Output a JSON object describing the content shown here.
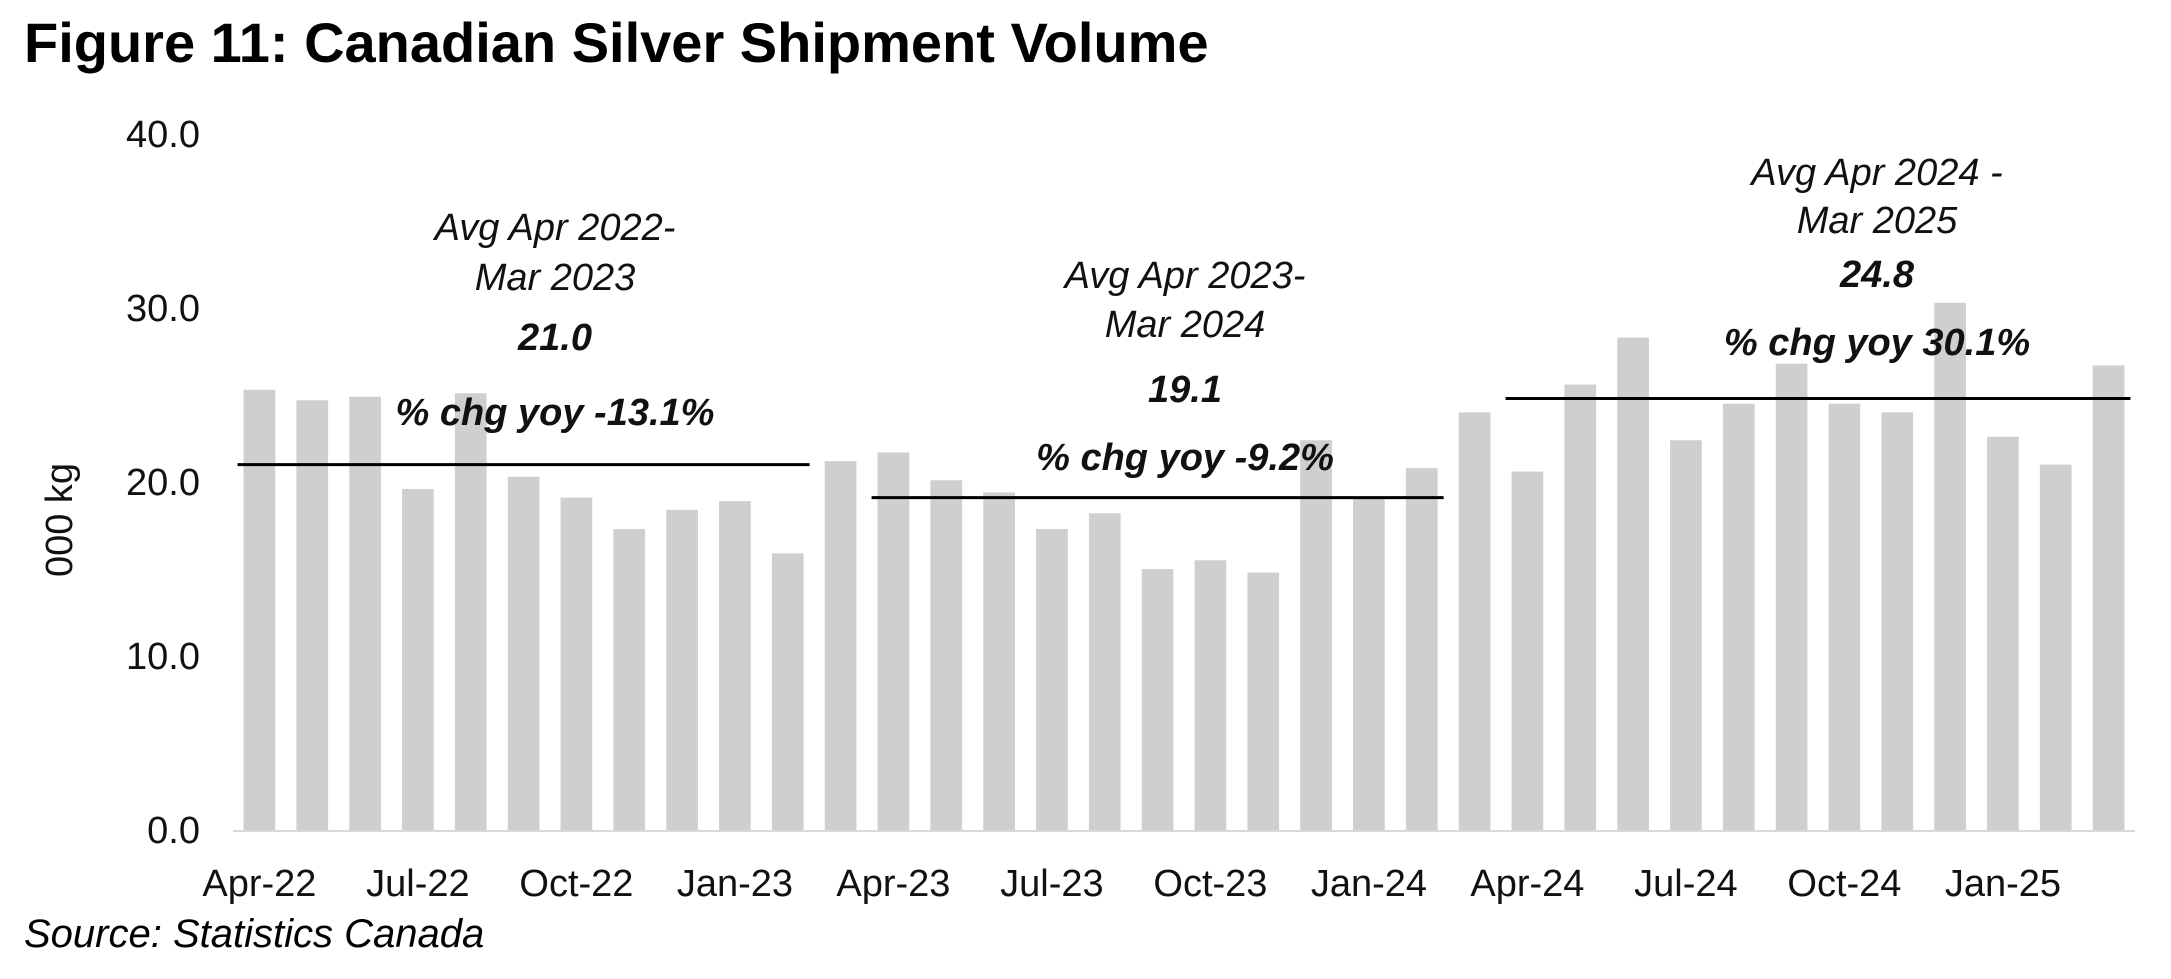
{
  "figure_title": "Figure 11: Canadian Silver Shipment Volume",
  "source": "Source: Statistics Canada",
  "colors": {
    "bar": "#d0cfcf",
    "line": "#000000",
    "axis": "#d9d9d9"
  },
  "chart_data": {
    "type": "bar",
    "title": "Figure 11: Canadian Silver Shipment Volume",
    "ylabel": "000 kg",
    "xlabel": "",
    "ylim": [
      0,
      40
    ],
    "yticks": [
      "0.0",
      "10.0",
      "20.0",
      "30.0",
      "40.0"
    ],
    "categories": [
      "Apr-22",
      "May-22",
      "Jun-22",
      "Jul-22",
      "Aug-22",
      "Sep-22",
      "Oct-22",
      "Nov-22",
      "Dec-22",
      "Jan-23",
      "Feb-23",
      "Mar-23",
      "Apr-23",
      "May-23",
      "Jun-23",
      "Jul-23",
      "Aug-23",
      "Sep-23",
      "Oct-23",
      "Nov-23",
      "Dec-23",
      "Jan-24",
      "Feb-24",
      "Mar-24",
      "Apr-24",
      "May-24",
      "Jun-24",
      "Jul-24",
      "Aug-24",
      "Sep-24",
      "Oct-24",
      "Nov-24",
      "Dec-24",
      "Jan-25",
      "Feb-25",
      "Mar-25"
    ],
    "values": [
      25.3,
      24.7,
      24.9,
      19.6,
      25.1,
      20.3,
      19.1,
      17.3,
      18.4,
      18.9,
      15.9,
      21.2,
      21.7,
      20.1,
      19.4,
      17.3,
      18.2,
      15.0,
      15.5,
      14.8,
      22.4,
      19.1,
      20.8,
      24.0,
      20.6,
      25.6,
      28.3,
      22.4,
      24.5,
      26.8,
      24.5,
      24.0,
      30.3,
      22.6,
      21.0,
      26.7
    ],
    "x_tick_labels": [
      "Apr-22",
      "Jul-22",
      "Oct-22",
      "Jan-23",
      "Apr-23",
      "Jul-23",
      "Oct-23",
      "Jan-24",
      "Apr-24",
      "Jul-24",
      "Oct-24",
      "Jan-25"
    ],
    "x_tick_every": 3,
    "averages": [
      {
        "start_index": 0,
        "end_index": 10,
        "value": 21.0,
        "label_line1": "Avg Apr 2022-",
        "label_line2": "Mar 2023",
        "value_label": "21.0",
        "yoy_label": "% chg yoy -13.1%"
      },
      {
        "start_index": 12,
        "end_index": 22,
        "value": 19.1,
        "label_line1": "Avg Apr 2023-",
        "label_line2": "Mar 2024",
        "value_label": "19.1",
        "yoy_label": "% chg yoy -9.2%"
      },
      {
        "start_index": 24,
        "end_index": 35,
        "value": 24.8,
        "label_line1": "Avg Apr 2024 -",
        "label_line2": "Mar 2025",
        "value_label": "24.8",
        "yoy_label": "% chg yoy  30.1%"
      }
    ]
  }
}
